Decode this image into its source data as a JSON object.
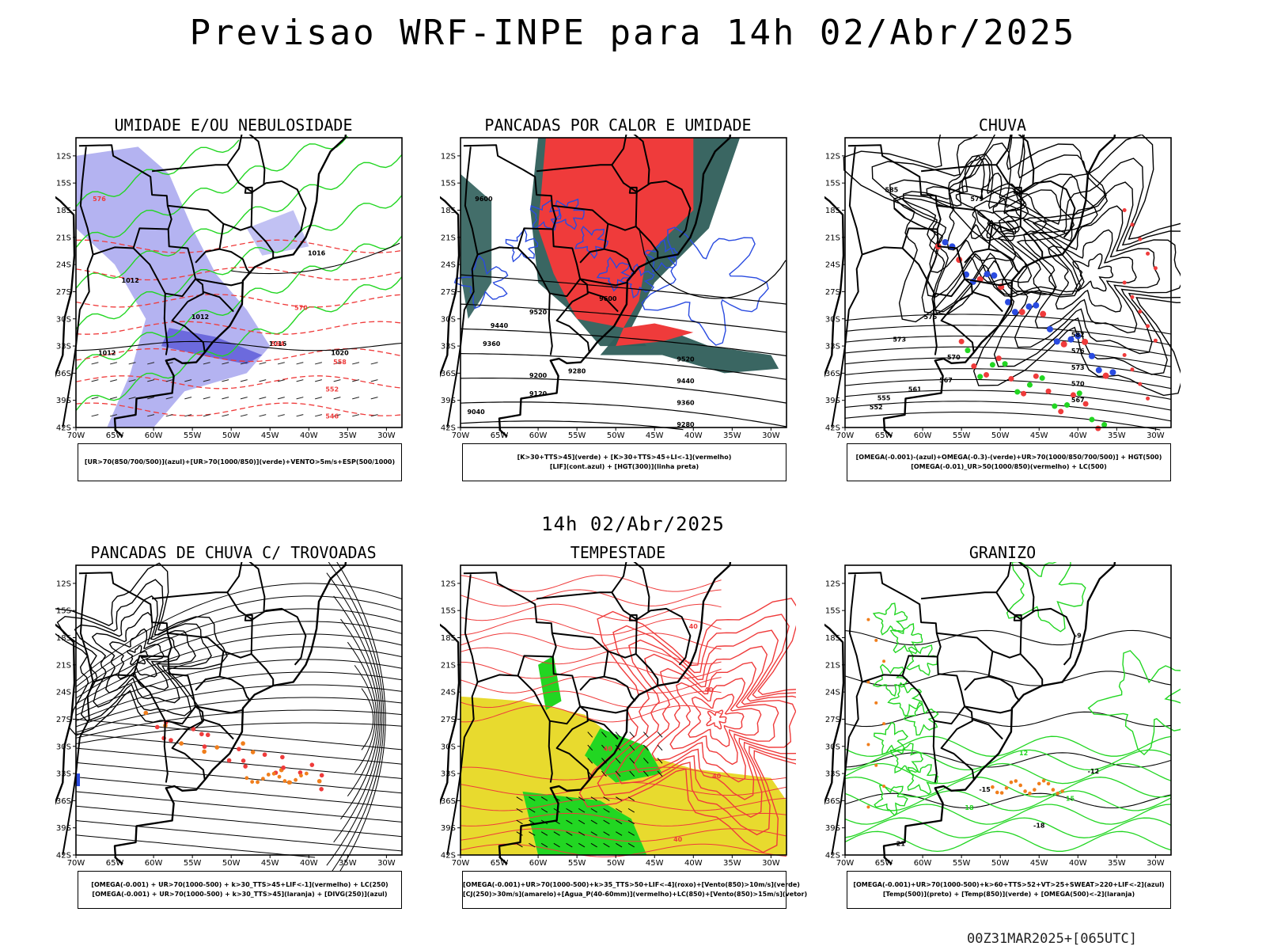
{
  "header": {
    "title": "Previsao WRF-INPE  para 14h 02/Abr/2025",
    "mid_title": "14h 02/Abr/2025",
    "footer": "00Z31MAR2025+[065UTC]"
  },
  "colors": {
    "land": "#ffffff",
    "coast": "#000000",
    "green": "#22d622",
    "red": "#ef3b3b",
    "blue": "#2a4be0",
    "lilac": "#a7a6ee",
    "dark_green": "#2f5e5a",
    "orange": "#f07e1c",
    "yellow": "#e8da2e"
  },
  "chart_data": [
    {
      "type": "heatmap",
      "title": "UMIDADE E/OU NEBULOSIDADE",
      "legend": [
        "[UR>70(850/700/500)](azul)+[UR>70(1000/850)](verde)+VENTO>5m/s+ESP(500/1000)"
      ],
      "x_ticks": [
        "70W",
        "65W",
        "60W",
        "55W",
        "50W",
        "45W",
        "40W",
        "35W",
        "30W"
      ],
      "y_ticks": [
        "12S",
        "15S",
        "18S",
        "21S",
        "24S",
        "27S",
        "30S",
        "33S",
        "36S",
        "39S",
        "42S"
      ],
      "xlim": [
        -70,
        -28
      ],
      "ylim": [
        -42,
        -10
      ],
      "contour_labels": [
        "1012",
        "1012",
        "1012",
        "1016",
        "1016",
        "1020",
        "576",
        "570",
        "564",
        "558",
        "552",
        "546"
      ]
    },
    {
      "type": "heatmap",
      "title": "PANCADAS POR CALOR E UMIDADE",
      "legend": [
        "[K>30+TTS>45](verde) + [K>30+TTS>45+LI<-1](vermelho)",
        "[LIF](cont.azul) + [HGT(300)](linha preta)"
      ],
      "x_ticks": [
        "70W",
        "65W",
        "60W",
        "55W",
        "50W",
        "45W",
        "40W",
        "35W",
        "30W"
      ],
      "y_ticks": [
        "12S",
        "15S",
        "18S",
        "21S",
        "24S",
        "27S",
        "30S",
        "33S",
        "36S",
        "39S",
        "42S"
      ],
      "xlim": [
        -70,
        -28
      ],
      "ylim": [
        -42,
        -10
      ],
      "contour_labels": [
        "9600",
        "9600",
        "9520",
        "9440",
        "9360",
        "9280",
        "9200",
        "9120",
        "9040",
        "9520",
        "9440",
        "9360",
        "9280"
      ]
    },
    {
      "type": "heatmap",
      "title": "CHUVA",
      "legend": [
        "[OMEGA(-0.001)-(azul)+OMEGA(-0.3)-(verde)+UR>70(1000/850/700/500)] + HGT(500)",
        "[OMEGA(-0.01)_UR>50(1000/850)(vermelho) + LC(500)"
      ],
      "x_ticks": [
        "70W",
        "65W",
        "60W",
        "55W",
        "50W",
        "45W",
        "40W",
        "35W",
        "30W"
      ],
      "y_ticks": [
        "12S",
        "15S",
        "18S",
        "21S",
        "24S",
        "27S",
        "30S",
        "33S",
        "36S",
        "39S",
        "42S"
      ],
      "xlim": [
        -70,
        -28
      ],
      "ylim": [
        -42,
        -10
      ],
      "contour_labels": [
        "585",
        "579",
        "576",
        "573",
        "570",
        "567",
        "561",
        "555",
        "552",
        "582",
        "576",
        "573",
        "570",
        "567"
      ]
    },
    {
      "type": "heatmap",
      "title": "PANCADAS DE CHUVA C/ TROVOADAS",
      "legend": [
        "[OMEGA(-0.001) + UR>70(1000-500) + k>30_TTS>45+LIF<-1](vermelho) + LC(250)",
        "[OMEGA(-0.001) + UR>70(1000-500) + k>30_TTS>45](laranja) + [DIVG(250)](azul)"
      ],
      "x_ticks": [
        "70W",
        "65W",
        "60W",
        "55W",
        "50W",
        "45W",
        "40W",
        "35W",
        "30W"
      ],
      "y_ticks": [
        "12S",
        "15S",
        "18S",
        "21S",
        "24S",
        "27S",
        "30S",
        "33S",
        "36S",
        "39S",
        "42S"
      ],
      "xlim": [
        -70,
        -28
      ],
      "ylim": [
        -42,
        -10
      ],
      "contour_labels": []
    },
    {
      "type": "heatmap",
      "title": "TEMPESTADE",
      "legend": [
        "[OMEGA(-0.001)+UR>70(1000-500)+k>35_TTS>50+LIF<-4](roxo)+[Vento(850)>10m/s](verde)",
        "[CJ(250)>30m/s](amarelo)+[Agua_P(40-60mm)](vermelho)+LC(850)+[Vento(850)>15m/s](vetor)"
      ],
      "x_ticks": [
        "70W",
        "65W",
        "60W",
        "55W",
        "50W",
        "45W",
        "40W",
        "35W",
        "30W"
      ],
      "y_ticks": [
        "12S",
        "15S",
        "18S",
        "21S",
        "24S",
        "27S",
        "30S",
        "33S",
        "36S",
        "39S",
        "42S"
      ],
      "xlim": [
        -70,
        -28
      ],
      "ylim": [
        -42,
        -10
      ],
      "contour_labels": [
        "40",
        "40",
        "40",
        "40",
        "40"
      ]
    },
    {
      "type": "heatmap",
      "title": "GRANIZO",
      "legend": [
        "[OMEGA(-0.001)+UR>70(1000-500)+k>60+TTS>52+VT>25+SWEAT>220+LIF<-2](azul)",
        "[Temp(500)](preto) + [Temp(850)](verde) + [OMEGA(500)<-2](laranja)"
      ],
      "x_ticks": [
        "70W",
        "65W",
        "60W",
        "55W",
        "50W",
        "45W",
        "40W",
        "35W",
        "30W"
      ],
      "y_ticks": [
        "12S",
        "15S",
        "18S",
        "21S",
        "24S",
        "27S",
        "30S",
        "33S",
        "36S",
        "39S",
        "42S"
      ],
      "xlim": [
        -70,
        -28
      ],
      "ylim": [
        -42,
        -10
      ],
      "contour_labels": [
        "-9",
        "-12",
        "-15",
        "-18",
        "-21",
        "12",
        "15",
        "18"
      ]
    }
  ]
}
